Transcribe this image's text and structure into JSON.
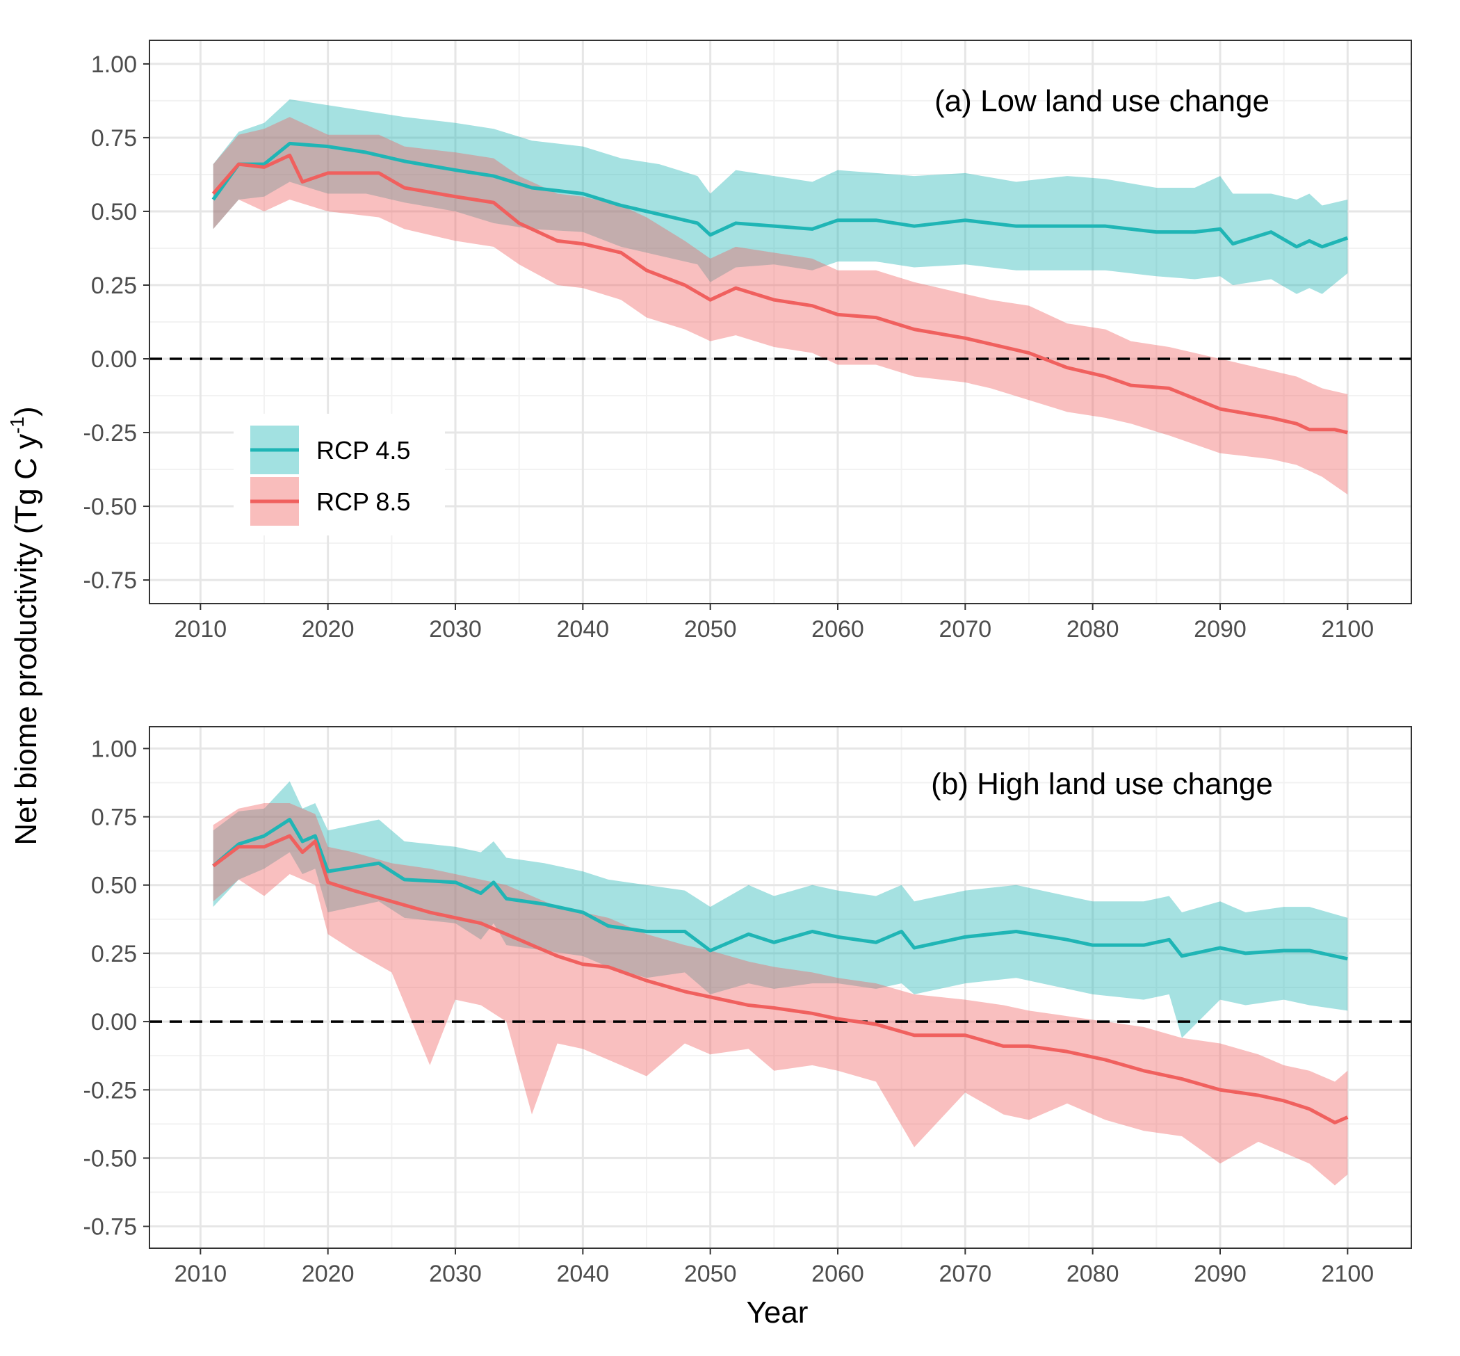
{
  "colors": {
    "rcp45": "#1FB5B5",
    "rcp45_band": "#A2E1E1",
    "rcp85": "#F0605E",
    "rcp85_band": "#F9BDBC",
    "grid": "#E6E6E6",
    "frame": "#333333",
    "zero_line": "#000000"
  },
  "y_axis_title": "Net biome productivity (Tg C y",
  "y_axis_title_superscript": "-1",
  "y_axis_title_close": ")",
  "x_axis_title": "Year",
  "legend": {
    "placement": "left-middle of top panel",
    "items": [
      {
        "label": "RCP 4.5",
        "color_key": "rcp45"
      },
      {
        "label": "RCP 8.5",
        "color_key": "rcp85"
      }
    ]
  },
  "chart_data": [
    {
      "type": "line",
      "title": "(a) Low land use change",
      "xlabel": "Year",
      "ylabel": "Net biome productivity (Tg C y-1)",
      "xlim": [
        2006,
        2105
      ],
      "ylim": [
        -0.83,
        1.08
      ],
      "x_ticks": [
        "2010",
        "2020",
        "2030",
        "2040",
        "2050",
        "2060",
        "2070",
        "2080",
        "2090",
        "2100"
      ],
      "y_ticks": [
        "1.00",
        "0.75",
        "0.50",
        "0.25",
        "0.00",
        "-0.25",
        "-0.50",
        "-0.75"
      ],
      "reference_line": {
        "y": 0,
        "style": "dashed"
      },
      "grid": true,
      "series": [
        {
          "name": "RCP 4.5",
          "x": [
            2011,
            2013,
            2015,
            2017,
            2020,
            2023,
            2026,
            2030,
            2033,
            2036,
            2040,
            2043,
            2046,
            2049,
            2050,
            2052,
            2055,
            2058,
            2060,
            2063,
            2066,
            2070,
            2074,
            2078,
            2081,
            2085,
            2088,
            2090,
            2091,
            2094,
            2096,
            2097,
            2098,
            2100
          ],
          "values": [
            0.54,
            0.66,
            0.66,
            0.73,
            0.72,
            0.7,
            0.67,
            0.64,
            0.62,
            0.58,
            0.56,
            0.52,
            0.49,
            0.46,
            0.42,
            0.46,
            0.45,
            0.44,
            0.47,
            0.47,
            0.45,
            0.47,
            0.45,
            0.45,
            0.45,
            0.43,
            0.43,
            0.44,
            0.39,
            0.43,
            0.38,
            0.4,
            0.38,
            0.41
          ],
          "upper": [
            0.66,
            0.77,
            0.8,
            0.88,
            0.86,
            0.84,
            0.82,
            0.8,
            0.78,
            0.74,
            0.72,
            0.68,
            0.66,
            0.62,
            0.56,
            0.64,
            0.62,
            0.6,
            0.64,
            0.63,
            0.62,
            0.63,
            0.6,
            0.62,
            0.61,
            0.58,
            0.58,
            0.62,
            0.56,
            0.56,
            0.54,
            0.56,
            0.52,
            0.54
          ],
          "lower": [
            0.44,
            0.54,
            0.55,
            0.6,
            0.56,
            0.56,
            0.53,
            0.5,
            0.46,
            0.44,
            0.43,
            0.38,
            0.35,
            0.32,
            0.26,
            0.31,
            0.32,
            0.3,
            0.33,
            0.33,
            0.31,
            0.32,
            0.3,
            0.3,
            0.3,
            0.28,
            0.27,
            0.28,
            0.25,
            0.27,
            0.22,
            0.24,
            0.22,
            0.29
          ]
        },
        {
          "name": "RCP 8.5",
          "x": [
            2011,
            2013,
            2015,
            2017,
            2018,
            2020,
            2024,
            2026,
            2030,
            2033,
            2035,
            2038,
            2040,
            2043,
            2045,
            2048,
            2050,
            2052,
            2055,
            2058,
            2060,
            2063,
            2066,
            2070,
            2072,
            2075,
            2078,
            2081,
            2083,
            2086,
            2090,
            2094,
            2096,
            2097,
            2099,
            2100
          ],
          "values": [
            0.56,
            0.66,
            0.65,
            0.69,
            0.6,
            0.63,
            0.63,
            0.58,
            0.55,
            0.53,
            0.46,
            0.4,
            0.39,
            0.36,
            0.3,
            0.25,
            0.2,
            0.24,
            0.2,
            0.18,
            0.15,
            0.14,
            0.1,
            0.07,
            0.05,
            0.02,
            -0.03,
            -0.06,
            -0.09,
            -0.1,
            -0.17,
            -0.2,
            -0.22,
            -0.24,
            -0.24,
            -0.25
          ]
        }
      ],
      "bands": [
        {
          "series": "RCP 8.5",
          "x": [
            2011,
            2013,
            2015,
            2017,
            2020,
            2024,
            2026,
            2030,
            2033,
            2035,
            2038,
            2040,
            2043,
            2045,
            2048,
            2050,
            2052,
            2055,
            2058,
            2060,
            2063,
            2066,
            2070,
            2072,
            2075,
            2078,
            2081,
            2083,
            2086,
            2090,
            2094,
            2096,
            2098,
            2100
          ],
          "upper": [
            0.66,
            0.76,
            0.78,
            0.82,
            0.76,
            0.76,
            0.72,
            0.7,
            0.68,
            0.62,
            0.56,
            0.55,
            0.52,
            0.48,
            0.4,
            0.34,
            0.38,
            0.36,
            0.34,
            0.3,
            0.3,
            0.26,
            0.22,
            0.2,
            0.18,
            0.12,
            0.1,
            0.06,
            0.04,
            0.0,
            -0.04,
            -0.06,
            -0.1,
            -0.12
          ],
          "lower": [
            0.44,
            0.54,
            0.5,
            0.54,
            0.5,
            0.48,
            0.44,
            0.4,
            0.38,
            0.32,
            0.25,
            0.24,
            0.2,
            0.14,
            0.1,
            0.06,
            0.08,
            0.04,
            0.02,
            -0.02,
            -0.02,
            -0.06,
            -0.08,
            -0.1,
            -0.14,
            -0.18,
            -0.2,
            -0.22,
            -0.26,
            -0.32,
            -0.34,
            -0.36,
            -0.4,
            -0.46
          ]
        }
      ]
    },
    {
      "type": "line",
      "title": "(b) High land use change",
      "xlabel": "Year",
      "ylabel": "Net biome productivity (Tg C y-1)",
      "xlim": [
        2006,
        2105
      ],
      "ylim": [
        -0.83,
        1.08
      ],
      "x_ticks": [
        "2010",
        "2020",
        "2030",
        "2040",
        "2050",
        "2060",
        "2070",
        "2080",
        "2090",
        "2100"
      ],
      "y_ticks": [
        "1.00",
        "0.75",
        "0.50",
        "0.25",
        "0.00",
        "-0.25",
        "-0.50",
        "-0.75"
      ],
      "reference_line": {
        "y": 0,
        "style": "dashed"
      },
      "grid": true,
      "series": [
        {
          "name": "RCP 4.5",
          "x": [
            2011,
            2013,
            2015,
            2017,
            2018,
            2019,
            2020,
            2024,
            2026,
            2030,
            2032,
            2033,
            2034,
            2037,
            2040,
            2042,
            2045,
            2048,
            2050,
            2053,
            2055,
            2058,
            2060,
            2063,
            2065,
            2066,
            2070,
            2074,
            2078,
            2080,
            2084,
            2086,
            2087,
            2090,
            2092,
            2095,
            2097,
            2100
          ],
          "values": [
            0.57,
            0.65,
            0.68,
            0.74,
            0.66,
            0.68,
            0.55,
            0.58,
            0.52,
            0.51,
            0.47,
            0.51,
            0.45,
            0.43,
            0.4,
            0.35,
            0.33,
            0.33,
            0.26,
            0.32,
            0.29,
            0.33,
            0.31,
            0.29,
            0.33,
            0.27,
            0.31,
            0.33,
            0.3,
            0.28,
            0.28,
            0.3,
            0.24,
            0.27,
            0.25,
            0.26,
            0.26,
            0.23
          ],
          "upper": [
            0.7,
            0.77,
            0.78,
            0.88,
            0.78,
            0.8,
            0.7,
            0.74,
            0.66,
            0.64,
            0.62,
            0.66,
            0.6,
            0.58,
            0.55,
            0.52,
            0.5,
            0.48,
            0.42,
            0.5,
            0.46,
            0.5,
            0.48,
            0.46,
            0.5,
            0.44,
            0.48,
            0.5,
            0.46,
            0.44,
            0.44,
            0.46,
            0.4,
            0.44,
            0.4,
            0.42,
            0.42,
            0.38
          ],
          "lower": [
            0.42,
            0.52,
            0.56,
            0.62,
            0.54,
            0.56,
            0.4,
            0.44,
            0.38,
            0.36,
            0.3,
            0.36,
            0.28,
            0.26,
            0.24,
            0.2,
            0.16,
            0.18,
            0.1,
            0.14,
            0.12,
            0.14,
            0.14,
            0.12,
            0.14,
            0.1,
            0.14,
            0.16,
            0.12,
            0.1,
            0.08,
            0.1,
            -0.06,
            0.08,
            0.06,
            0.08,
            0.06,
            0.04
          ]
        },
        {
          "name": "RCP 8.5",
          "x": [
            2011,
            2013,
            2015,
            2017,
            2018,
            2019,
            2020,
            2022,
            2025,
            2028,
            2030,
            2032,
            2034,
            2036,
            2038,
            2040,
            2042,
            2045,
            2048,
            2050,
            2053,
            2055,
            2058,
            2060,
            2063,
            2066,
            2070,
            2073,
            2075,
            2078,
            2081,
            2084,
            2087,
            2090,
            2093,
            2095,
            2097,
            2099,
            2100
          ],
          "values": [
            0.57,
            0.64,
            0.64,
            0.68,
            0.62,
            0.66,
            0.51,
            0.48,
            0.44,
            0.4,
            0.38,
            0.36,
            0.32,
            0.28,
            0.24,
            0.21,
            0.2,
            0.15,
            0.11,
            0.09,
            0.06,
            0.05,
            0.03,
            0.01,
            -0.01,
            -0.05,
            -0.05,
            -0.09,
            -0.09,
            -0.11,
            -0.14,
            -0.18,
            -0.21,
            -0.25,
            -0.27,
            -0.29,
            -0.32,
            -0.37,
            -0.35
          ]
        }
      ],
      "bands": [
        {
          "series": "RCP 8.5",
          "x": [
            2011,
            2013,
            2015,
            2017,
            2019,
            2020,
            2022,
            2025,
            2028,
            2030,
            2032,
            2034,
            2036,
            2038,
            2040,
            2042,
            2045,
            2048,
            2050,
            2053,
            2055,
            2058,
            2060,
            2063,
            2066,
            2070,
            2073,
            2075,
            2078,
            2081,
            2084,
            2087,
            2090,
            2093,
            2095,
            2097,
            2099,
            2100
          ],
          "upper": [
            0.72,
            0.78,
            0.8,
            0.8,
            0.76,
            0.64,
            0.62,
            0.58,
            0.56,
            0.54,
            0.52,
            0.5,
            0.46,
            0.42,
            0.4,
            0.38,
            0.32,
            0.28,
            0.26,
            0.22,
            0.2,
            0.18,
            0.16,
            0.14,
            0.1,
            0.08,
            0.06,
            0.04,
            0.02,
            0.0,
            -0.02,
            -0.06,
            -0.08,
            -0.12,
            -0.16,
            -0.18,
            -0.22,
            -0.18
          ],
          "lower": [
            0.44,
            0.52,
            0.46,
            0.54,
            0.5,
            0.32,
            0.26,
            0.18,
            -0.16,
            0.08,
            0.06,
            0.0,
            -0.34,
            -0.08,
            -0.1,
            -0.14,
            -0.2,
            -0.08,
            -0.12,
            -0.1,
            -0.18,
            -0.16,
            -0.18,
            -0.22,
            -0.46,
            -0.26,
            -0.34,
            -0.36,
            -0.3,
            -0.36,
            -0.4,
            -0.42,
            -0.52,
            -0.44,
            -0.48,
            -0.52,
            -0.6,
            -0.56
          ]
        }
      ]
    }
  ]
}
